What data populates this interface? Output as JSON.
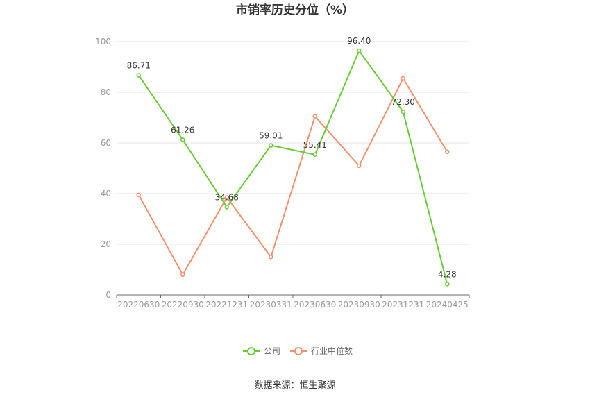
{
  "chart_data": {
    "type": "line",
    "title": "市销率历史分位（%）",
    "categories": [
      "20220630",
      "20220930",
      "20221231",
      "20230331",
      "20230630",
      "20230930",
      "20231231",
      "20240425"
    ],
    "ylim": [
      0,
      100
    ],
    "yticks": [
      "0",
      "20",
      "40",
      "60",
      "80",
      "100"
    ],
    "grid": true,
    "legend_position": "bottom",
    "series": [
      {
        "name": "公司",
        "color": "#66cc33",
        "values": [
          86.71,
          61.26,
          34.68,
          59.01,
          55.41,
          96.4,
          72.3,
          4.28
        ],
        "labels": [
          "86.71",
          "61.26",
          "34.68",
          "59.01",
          "55.41",
          "96.40",
          "72.30",
          "4.28"
        ]
      },
      {
        "name": "行业中位数",
        "color": "#f0906a",
        "values": [
          39.5,
          8.0,
          38.5,
          15.0,
          70.5,
          51.0,
          85.5,
          56.5
        ]
      }
    ],
    "source": "数据来源：恒生聚源"
  }
}
